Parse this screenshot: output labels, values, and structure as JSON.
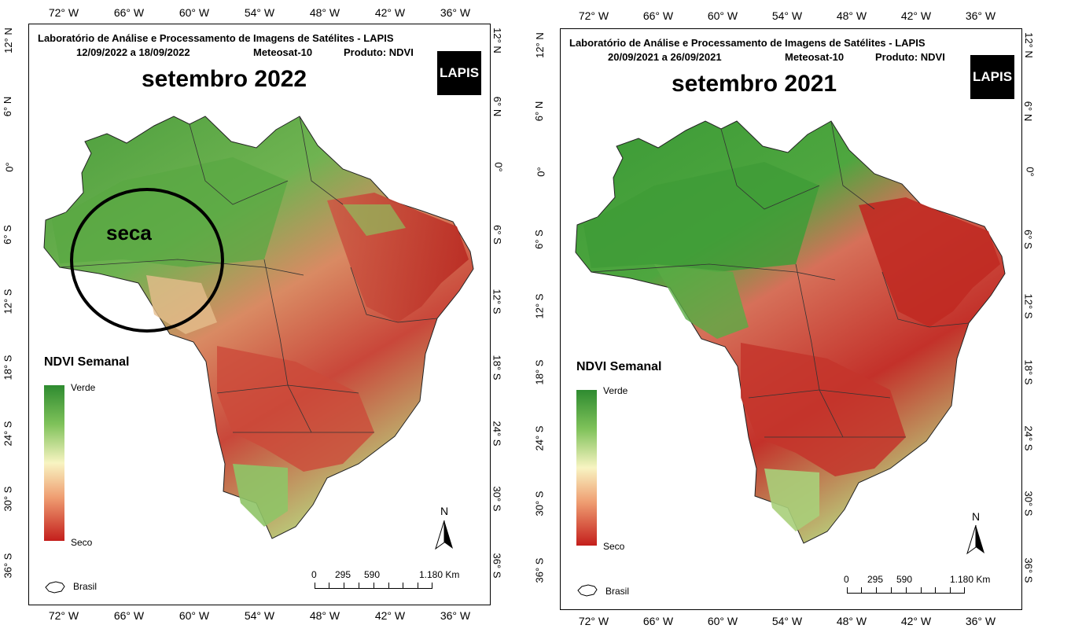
{
  "panels": [
    {
      "header_line1": "Laboratório de Análise e Processamento de Imagens de Satélites - LAPIS",
      "header_line2_dates": "12/09/2022  a  18/09/2022",
      "header_line2_sat": "Meteosat-10",
      "header_line2_prod": "Produto: NDVI",
      "title": "setembro 2022",
      "logo": "LAPIS",
      "annotation": "seca",
      "legend_title": "NDVI Semanal",
      "legend_top": "Verde",
      "legend_bottom": "Seco",
      "brasil": "Brasil",
      "north": "N",
      "scale_labels": [
        "0",
        "295",
        "590",
        "1.180 Km"
      ],
      "lon_ticks": [
        "72° W",
        "66° W",
        "60° W",
        "54° W",
        "48° W",
        "42° W",
        "36° W"
      ],
      "lat_ticks": [
        "12° N",
        "6° N",
        "0°",
        "6° S",
        "12° S",
        "18° S",
        "24° S",
        "30° S",
        "36° S"
      ]
    },
    {
      "header_line1": "Laboratório de Análise e Processamento de Imagens de Satélites - LAPIS",
      "header_line2_dates": "20/09/2021  a  26/09/2021",
      "header_line2_sat": "Meteosat-10",
      "header_line2_prod": "Produto: NDVI",
      "title": "setembro 2021",
      "logo": "LAPIS",
      "legend_title": "NDVI Semanal",
      "legend_top": "Verde",
      "legend_bottom": "Seco",
      "brasil": "Brasil",
      "north": "N",
      "scale_labels": [
        "0",
        "295",
        "590",
        "1.180 Km"
      ],
      "lon_ticks": [
        "72° W",
        "66° W",
        "60° W",
        "54° W",
        "48° W",
        "42° W",
        "36° W"
      ],
      "lat_ticks": [
        "12° N",
        "6° N",
        "0°",
        "6° S",
        "12° S",
        "18° S",
        "24° S",
        "30° S",
        "36° S"
      ]
    }
  ],
  "colors": {
    "green": "#2e8b30",
    "light": "#f8f4c2",
    "red": "#c41f1c"
  }
}
